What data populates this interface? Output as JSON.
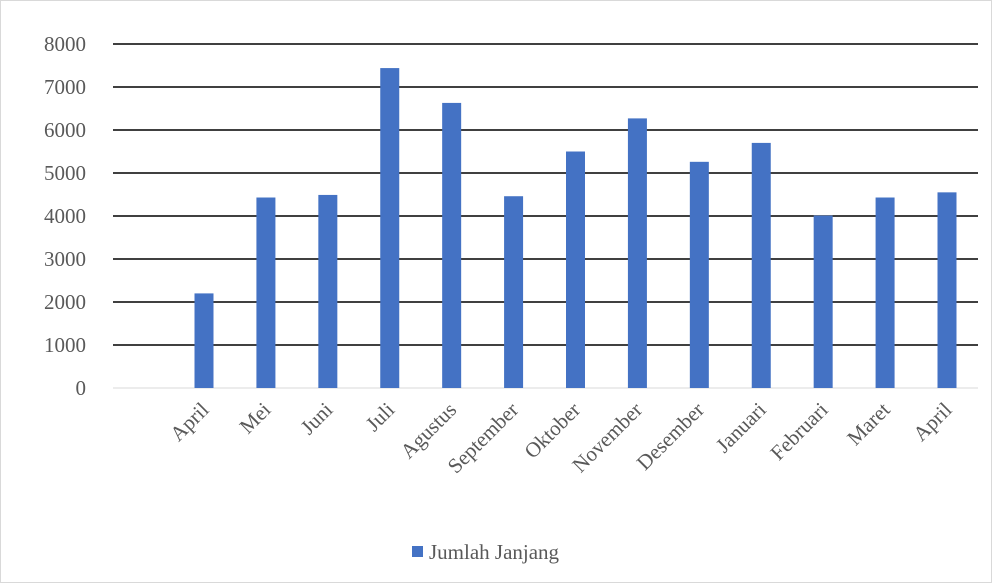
{
  "chart_data": {
    "type": "bar",
    "categories": [
      "April",
      "Mei",
      "Juni",
      "Juli",
      "Agustus",
      "September",
      "Oktober",
      "November",
      "Desember",
      "Januari",
      "Februari",
      "Maret",
      "April"
    ],
    "series": [
      {
        "name": "Jumlah Janjang",
        "values": [
          2200,
          4430,
          4490,
          7440,
          6630,
          4460,
          5500,
          6270,
          5260,
          5700,
          4010,
          4430,
          4550
        ],
        "color": "#4472c4"
      }
    ],
    "title": "",
    "xlabel": "",
    "ylabel": "",
    "ylim": [
      0,
      8000
    ],
    "yticks": [
      "0",
      "1000",
      "2000",
      "3000",
      "4000",
      "5000",
      "6000",
      "7000",
      "8000"
    ],
    "grid": true,
    "legend": "bottom"
  }
}
